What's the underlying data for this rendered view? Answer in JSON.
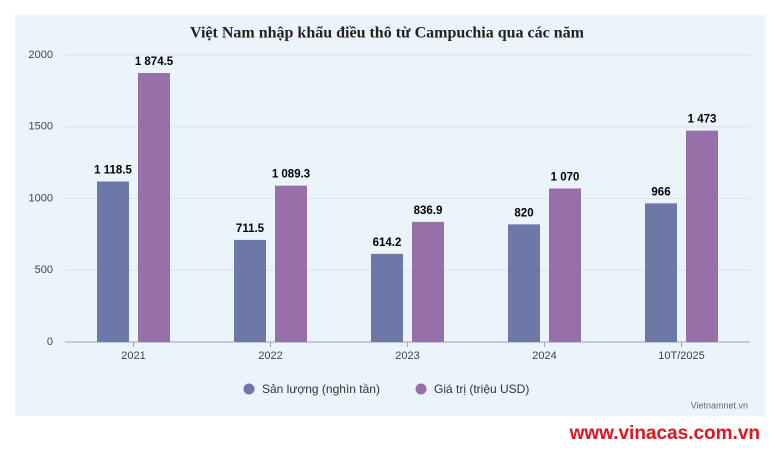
{
  "chart_data": {
    "type": "bar",
    "title": "Việt Nam nhập khẩu điều thô từ Campuchia qua các năm",
    "categories": [
      "2021",
      "2022",
      "2023",
      "2024",
      "10T/2025"
    ],
    "series": [
      {
        "name": "Sản lượng (nghìn tần)",
        "color": "#6d78a8",
        "values": [
          1118.5,
          711.5,
          614.2,
          820,
          966
        ],
        "value_labels": [
          "1 118.5",
          "711.5",
          "614.2",
          "820",
          "966"
        ]
      },
      {
        "name": "Giá trị (triệu USD)",
        "color": "#976fa9",
        "values": [
          1874.5,
          1089.3,
          836.9,
          1070,
          1473
        ],
        "value_labels": [
          "1 874.5",
          "1 089.3",
          "836.9",
          "1 070",
          "1 473"
        ]
      }
    ],
    "ylim": [
      0,
      2000
    ],
    "yticks": [
      0,
      500,
      1000,
      1500,
      2000
    ],
    "grid": true,
    "legend": "bottom",
    "credit": "Vietnamnet.vn"
  },
  "watermark": "www.vinacas.com.vn"
}
